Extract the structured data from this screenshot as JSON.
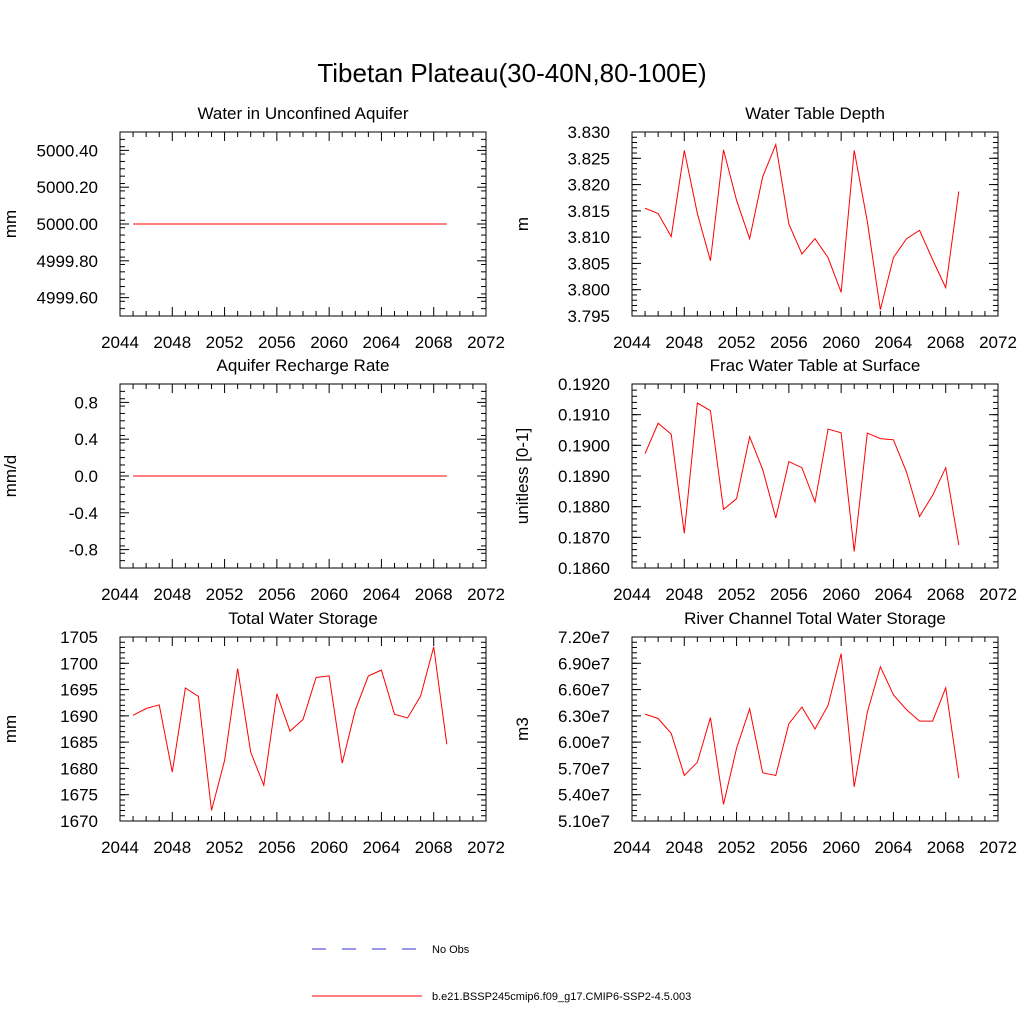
{
  "title": "Tibetan Plateau(30-40N,80-100E)",
  "colors": {
    "model": "#ff0000",
    "obs": "#3030cc"
  },
  "legend": {
    "placement": "bottom",
    "entries": [
      {
        "label": "No Obs",
        "style": "dashed",
        "color": "#3030cc"
      },
      {
        "label": "b.e21.BSSP245cmip6.f09_g17.CMIP6-SSP2-4.5.003",
        "style": "solid",
        "color": "#ff0000"
      }
    ]
  },
  "chart_data": [
    {
      "type": "line",
      "title": "Water in Unconfined Aquifer",
      "ylabel": "mm",
      "xlim": [
        2044,
        2072
      ],
      "ylim": [
        4999.5,
        5000.5
      ],
      "xticks": [
        2044,
        2048,
        2052,
        2056,
        2060,
        2064,
        2068,
        2072
      ],
      "yticks": [
        4999.6,
        4999.8,
        5000.0,
        5000.2,
        5000.4
      ],
      "ytick_labels": [
        "4999.60",
        "4999.80",
        "5000.00",
        "5000.20",
        "5000.40"
      ],
      "x": [
        2045,
        2046,
        2047,
        2048,
        2049,
        2050,
        2051,
        2052,
        2053,
        2054,
        2055,
        2056,
        2057,
        2058,
        2059,
        2060,
        2061,
        2062,
        2063,
        2064,
        2065,
        2066,
        2067,
        2068,
        2069
      ],
      "values": [
        5000,
        5000,
        5000,
        5000,
        5000,
        5000,
        5000,
        5000,
        5000,
        5000,
        5000,
        5000,
        5000,
        5000,
        5000,
        5000,
        5000,
        5000,
        5000,
        5000,
        5000,
        5000,
        5000,
        5000,
        5000
      ]
    },
    {
      "type": "line",
      "title": "Water Table Depth",
      "ylabel": "m",
      "xlim": [
        2044,
        2072
      ],
      "ylim": [
        3.795,
        3.83
      ],
      "xticks": [
        2044,
        2048,
        2052,
        2056,
        2060,
        2064,
        2068,
        2072
      ],
      "yticks": [
        3.795,
        3.8,
        3.805,
        3.81,
        3.815,
        3.82,
        3.825,
        3.83
      ],
      "ytick_labels": [
        "3.795",
        "3.800",
        "3.805",
        "3.810",
        "3.815",
        "3.820",
        "3.825",
        "3.830"
      ],
      "x": [
        2045,
        2046,
        2047,
        2048,
        2049,
        2050,
        2051,
        2052,
        2053,
        2054,
        2055,
        2056,
        2057,
        2058,
        2059,
        2060,
        2061,
        2062,
        2063,
        2064,
        2065,
        2066,
        2067,
        2068,
        2069
      ],
      "values": [
        3.8155,
        3.8145,
        3.8101,
        3.8265,
        3.8145,
        3.8055,
        3.8266,
        3.817,
        3.8097,
        3.8215,
        3.8276,
        3.8125,
        3.8068,
        3.8097,
        3.8061,
        3.7995,
        3.8265,
        3.813,
        3.7962,
        3.8061,
        3.8097,
        3.8113,
        3.8057,
        3.8004,
        3.8187
      ]
    },
    {
      "type": "line",
      "title": "Aquifer Recharge Rate",
      "ylabel": "mm/d",
      "xlim": [
        2044,
        2072
      ],
      "ylim": [
        -1.0,
        1.0
      ],
      "xticks": [
        2044,
        2048,
        2052,
        2056,
        2060,
        2064,
        2068,
        2072
      ],
      "yticks": [
        -0.8,
        -0.4,
        0.0,
        0.4,
        0.8
      ],
      "ytick_labels": [
        "-0.8",
        "-0.4",
        "0.0",
        "0.4",
        "0.8"
      ],
      "x": [
        2045,
        2046,
        2047,
        2048,
        2049,
        2050,
        2051,
        2052,
        2053,
        2054,
        2055,
        2056,
        2057,
        2058,
        2059,
        2060,
        2061,
        2062,
        2063,
        2064,
        2065,
        2066,
        2067,
        2068,
        2069
      ],
      "values": [
        0,
        0,
        0,
        0,
        0,
        0,
        0,
        0,
        0,
        0,
        0,
        0,
        0,
        0,
        0,
        0,
        0,
        0,
        0,
        0,
        0,
        0,
        0,
        0,
        0
      ]
    },
    {
      "type": "line",
      "title": "Frac Water Table at Surface",
      "ylabel": "unitless [0-1]",
      "xlim": [
        2044,
        2072
      ],
      "ylim": [
        0.186,
        0.192
      ],
      "xticks": [
        2044,
        2048,
        2052,
        2056,
        2060,
        2064,
        2068,
        2072
      ],
      "yticks": [
        0.186,
        0.187,
        0.188,
        0.189,
        0.19,
        0.191,
        0.192
      ],
      "ytick_labels": [
        "0.1860",
        "0.1870",
        "0.1880",
        "0.1890",
        "0.1900",
        "0.1910",
        "0.1920"
      ],
      "x": [
        2045,
        2046,
        2047,
        2048,
        2049,
        2050,
        2051,
        2052,
        2053,
        2054,
        2055,
        2056,
        2057,
        2058,
        2059,
        2060,
        2061,
        2062,
        2063,
        2064,
        2065,
        2066,
        2067,
        2068,
        2069
      ],
      "values": [
        0.18973,
        0.19072,
        0.19036,
        0.18713,
        0.19138,
        0.19113,
        0.18791,
        0.18826,
        0.19028,
        0.18921,
        0.18763,
        0.18947,
        0.18927,
        0.18815,
        0.19053,
        0.19041,
        0.18654,
        0.1904,
        0.19022,
        0.19018,
        0.18913,
        0.18768,
        0.18837,
        0.18927,
        0.18675
      ]
    },
    {
      "type": "line",
      "title": "Total Water Storage",
      "ylabel": "mm",
      "xlim": [
        2044,
        2072
      ],
      "ylim": [
        1670,
        1705
      ],
      "xticks": [
        2044,
        2048,
        2052,
        2056,
        2060,
        2064,
        2068,
        2072
      ],
      "yticks": [
        1670,
        1675,
        1680,
        1685,
        1690,
        1695,
        1700,
        1705
      ],
      "ytick_labels": [
        "1670",
        "1675",
        "1680",
        "1685",
        "1690",
        "1695",
        "1700",
        "1705"
      ],
      "x": [
        2045,
        2046,
        2047,
        2048,
        2049,
        2050,
        2051,
        2052,
        2053,
        2054,
        2055,
        2056,
        2057,
        2058,
        2059,
        2060,
        2061,
        2062,
        2063,
        2064,
        2065,
        2066,
        2067,
        2068,
        2069
      ],
      "values": [
        1690.1,
        1691.4,
        1692.1,
        1679.3,
        1695.3,
        1693.7,
        1672.0,
        1681.5,
        1699.0,
        1683.1,
        1676.8,
        1694.2,
        1687.1,
        1689.3,
        1697.3,
        1697.6,
        1681.0,
        1691.1,
        1697.6,
        1698.7,
        1690.3,
        1689.6,
        1693.8,
        1703.1,
        1684.6
      ]
    },
    {
      "type": "line",
      "title": "River Channel Total Water Storage",
      "ylabel": "m3",
      "xlim": [
        2044,
        2072
      ],
      "ylim": [
        51000000,
        72000000
      ],
      "xticks": [
        2044,
        2048,
        2052,
        2056,
        2060,
        2064,
        2068,
        2072
      ],
      "yticks": [
        51000000,
        54000000,
        57000000,
        60000000,
        63000000,
        66000000,
        69000000,
        72000000
      ],
      "ytick_labels": [
        "5.10e7",
        "5.40e7",
        "5.70e7",
        "6.00e7",
        "6.30e7",
        "6.60e7",
        "6.90e7",
        "7.20e7"
      ],
      "x": [
        2045,
        2046,
        2047,
        2048,
        2049,
        2050,
        2051,
        2052,
        2053,
        2054,
        2055,
        2056,
        2057,
        2058,
        2059,
        2060,
        2061,
        2062,
        2063,
        2064,
        2065,
        2066,
        2067,
        2068,
        2069
      ],
      "values": [
        63200000,
        62700000,
        61000000,
        56200000,
        57700000,
        62800000,
        52900000,
        59300000,
        63800000,
        56500000,
        56200000,
        62100000,
        64000000,
        61500000,
        64200000,
        70100000,
        54900000,
        63400000,
        68600000,
        65400000,
        63700000,
        62400000,
        62400000,
        66200000,
        55900000
      ]
    }
  ]
}
